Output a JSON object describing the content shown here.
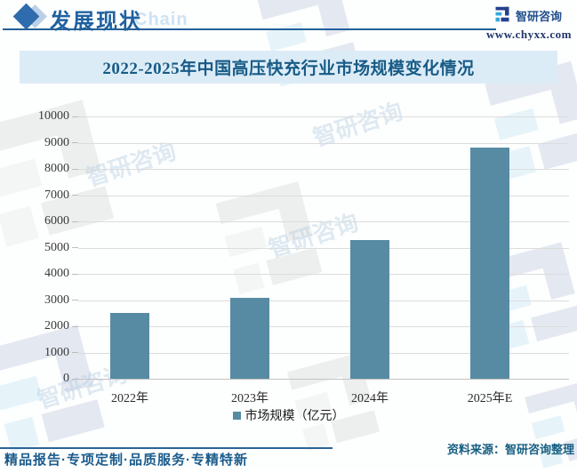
{
  "header": {
    "title": "发展现状",
    "subtitle": "Chain",
    "brand_name": "智研咨询",
    "brand_url": "www.chyxx.com"
  },
  "chart_data": {
    "type": "bar",
    "title": "2022-2025年中国高压快充行业市场规模变化情况",
    "categories": [
      "2022年",
      "2023年",
      "2024年",
      "2025年E"
    ],
    "series": [
      {
        "name": "市场规模（亿元）",
        "values": [
          2500,
          3100,
          5300,
          8800
        ]
      }
    ],
    "xlabel": "",
    "ylabel": "",
    "ylim": [
      0,
      10000
    ],
    "ytick_step": 1000,
    "grid": true,
    "legend_position": "bottom",
    "bar_color": "#578ba3"
  },
  "watermark": {
    "text": "智研咨询"
  },
  "footer": {
    "source": "资料来源：智研咨询整理",
    "tagline": "精品报告·专项定制·品质服务·专精特新"
  },
  "colors": {
    "bar": "#578ba3",
    "title_text": "#175b86",
    "title_band_bg": "#dcecf7",
    "header_blue": "#1f61a0",
    "footer_blue": "#1b5c8c"
  }
}
